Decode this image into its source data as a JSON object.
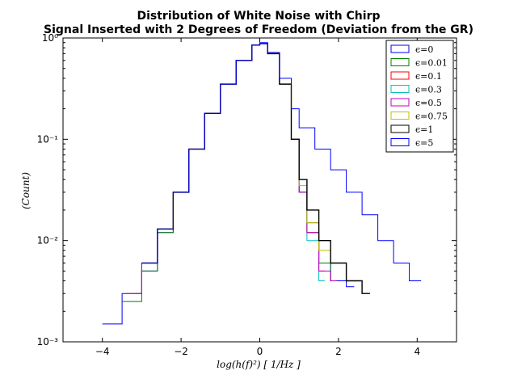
{
  "chart_data": {
    "type": "line",
    "title_lines": [
      "Distribution of White Noise with Chirp",
      "Signal Inserted with 2 Degrees of Freedom (Deviation from the GR)"
    ],
    "xlabel": "log(h(f)²) [ 1/Hz ]",
    "ylabel": "(Count)",
    "xlim": [
      -5,
      5
    ],
    "ylim": [
      0.001,
      1
    ],
    "yscale": "log",
    "xticks": [
      -4,
      -2,
      0,
      2,
      4
    ],
    "xtick_labels": [
      "−4",
      "−2",
      "0",
      "2",
      "4"
    ],
    "yticks": [
      0.001,
      0.01,
      0.1,
      1
    ],
    "ytick_labels": [
      "10⁻³",
      "10⁻²",
      "10⁻¹",
      "10⁰"
    ],
    "grid": false,
    "legend_position": "top-right",
    "series": [
      {
        "name": "ϵ=0",
        "color": "#0000ff",
        "x": [
          -4.0,
          -3.5,
          -3.0,
          -2.6,
          -2.2,
          -1.8,
          -1.4,
          -1.0,
          -0.6,
          -0.2,
          0.0,
          0.2,
          0.5,
          0.8,
          1.0,
          1.2,
          1.5,
          1.8,
          2.2
        ],
        "y": [
          0.0015,
          0.003,
          0.005,
          0.012,
          0.03,
          0.08,
          0.18,
          0.35,
          0.6,
          0.85,
          0.9,
          0.7,
          0.35,
          0.1,
          0.03,
          0.015,
          0.006,
          0.004,
          0.0035
        ]
      },
      {
        "name": "ϵ=0.01",
        "color": "#008000",
        "x": [
          -3.5,
          -3.0,
          -2.6,
          -2.2,
          -1.8,
          -1.4,
          -1.0,
          -0.6,
          -0.2,
          0.0,
          0.2,
          0.5,
          0.8,
          1.0,
          1.2,
          1.5,
          1.8
        ],
        "y": [
          0.0025,
          0.005,
          0.012,
          0.03,
          0.08,
          0.18,
          0.35,
          0.6,
          0.85,
          0.88,
          0.7,
          0.35,
          0.1,
          0.03,
          0.012,
          0.006,
          0.004
        ]
      },
      {
        "name": "ϵ=0.1",
        "color": "#ff0000",
        "x": [
          -3.4,
          -3.0,
          -2.6,
          -2.2,
          -1.8,
          -1.4,
          -1.0,
          -0.6,
          -0.2,
          0.0,
          0.2,
          0.5,
          0.8,
          1.0,
          1.2,
          1.5
        ],
        "y": [
          0.003,
          0.006,
          0.013,
          0.03,
          0.08,
          0.18,
          0.35,
          0.6,
          0.85,
          0.88,
          0.7,
          0.35,
          0.1,
          0.03,
          0.012,
          0.005
        ]
      },
      {
        "name": "ϵ=0.3",
        "color": "#00bfbf",
        "x": [
          -3.2,
          -3.0,
          -2.6,
          -2.2,
          -1.8,
          -1.4,
          -1.0,
          -0.6,
          -0.2,
          0.0,
          0.2,
          0.5,
          0.8,
          1.0,
          1.2,
          1.5
        ],
        "y": [
          0.003,
          0.006,
          0.013,
          0.03,
          0.08,
          0.18,
          0.35,
          0.6,
          0.85,
          0.88,
          0.7,
          0.35,
          0.1,
          0.03,
          0.01,
          0.004
        ]
      },
      {
        "name": "ϵ=0.5",
        "color": "#bf00bf",
        "x": [
          -3.2,
          -3.0,
          -2.6,
          -2.2,
          -1.8,
          -1.4,
          -1.0,
          -0.6,
          -0.2,
          0.0,
          0.2,
          0.5,
          0.8,
          1.0,
          1.2,
          1.5,
          1.8
        ],
        "y": [
          0.003,
          0.006,
          0.013,
          0.03,
          0.08,
          0.18,
          0.35,
          0.6,
          0.85,
          0.88,
          0.7,
          0.35,
          0.1,
          0.03,
          0.012,
          0.005,
          0.004
        ]
      },
      {
        "name": "ϵ=0.75",
        "color": "#bfbf00",
        "x": [
          -3.0,
          -2.6,
          -2.2,
          -1.8,
          -1.4,
          -1.0,
          -0.6,
          -0.2,
          0.0,
          0.2,
          0.5,
          0.8,
          1.0,
          1.2,
          1.5,
          1.8,
          2.2
        ],
        "y": [
          0.006,
          0.013,
          0.03,
          0.08,
          0.18,
          0.35,
          0.6,
          0.85,
          0.88,
          0.7,
          0.35,
          0.1,
          0.035,
          0.015,
          0.008,
          0.006,
          0.004
        ]
      },
      {
        "name": "ϵ=1",
        "color": "#000000",
        "x": [
          -3.0,
          -2.6,
          -2.2,
          -1.8,
          -1.4,
          -1.0,
          -0.6,
          -0.2,
          0.0,
          0.2,
          0.5,
          0.8,
          1.0,
          1.2,
          1.5,
          1.8,
          2.2,
          2.6
        ],
        "y": [
          0.006,
          0.013,
          0.03,
          0.08,
          0.18,
          0.35,
          0.6,
          0.85,
          0.88,
          0.7,
          0.35,
          0.1,
          0.04,
          0.02,
          0.01,
          0.006,
          0.004,
          0.003
        ]
      },
      {
        "name": "ϵ=5",
        "color": "#0000ff",
        "x": [
          -3.0,
          -2.6,
          -2.2,
          -1.8,
          -1.4,
          -1.0,
          -0.6,
          -0.2,
          0.0,
          0.2,
          0.5,
          0.8,
          1.0,
          1.4,
          1.8,
          2.2,
          2.6,
          3.0,
          3.4,
          3.8,
          4.0
        ],
        "y": [
          0.006,
          0.013,
          0.03,
          0.08,
          0.18,
          0.35,
          0.6,
          0.85,
          0.88,
          0.72,
          0.4,
          0.2,
          0.13,
          0.08,
          0.05,
          0.03,
          0.018,
          0.01,
          0.006,
          0.004,
          0.004
        ]
      }
    ]
  }
}
